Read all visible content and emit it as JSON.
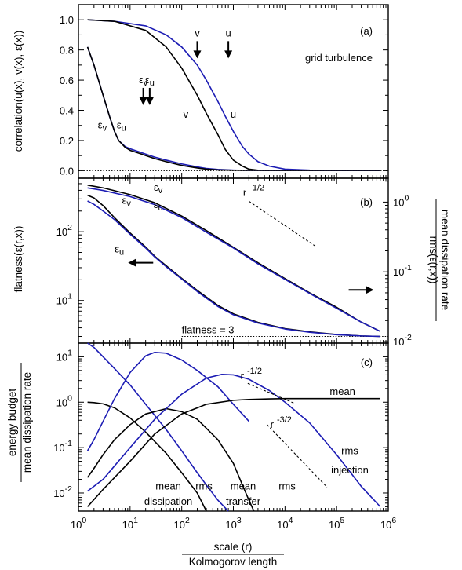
{
  "chart_data": [
    {
      "panel": "a",
      "type": "line",
      "panel_label": "(a)",
      "title_note": "grid turbulence",
      "ylabel": "correlation(u(x), v(x), ε(x))",
      "xscale": "log",
      "xlim": [
        1,
        1000000
      ],
      "ylim": [
        -0.05,
        1.1
      ],
      "yticks": [
        "0.0",
        "0.2",
        "0.4",
        "0.6",
        "0.8",
        "1.0"
      ],
      "reference_line": {
        "y": 0,
        "style": "dotted"
      },
      "series": [
        {
          "name": "u",
          "color": "#1c1cb4",
          "x": [
            1.5,
            5,
            20,
            50,
            100,
            200,
            300,
            500,
            700,
            1000,
            1500,
            2000,
            3000,
            5000,
            10000,
            30000,
            100000,
            700000
          ],
          "y": [
            1.0,
            0.99,
            0.96,
            0.9,
            0.82,
            0.7,
            0.6,
            0.46,
            0.36,
            0.26,
            0.16,
            0.11,
            0.06,
            0.03,
            0.01,
            0.004,
            0.002,
            0.002
          ]
        },
        {
          "name": "v",
          "color": "#000000",
          "x": [
            1.5,
            5,
            20,
            50,
            100,
            200,
            300,
            500,
            700,
            1000,
            1500,
            2000,
            3000,
            5000,
            10000,
            700000
          ],
          "y": [
            1.0,
            0.99,
            0.93,
            0.82,
            0.68,
            0.5,
            0.38,
            0.24,
            0.14,
            0.07,
            0.03,
            0.01,
            0.003,
            0.002,
            0.002,
            0.002
          ]
        },
        {
          "name": "εu",
          "color": "#1c1cb4",
          "x": [
            1.5,
            2,
            3,
            4,
            5,
            6,
            8,
            10,
            15,
            20,
            30,
            50,
            100,
            200,
            300,
            500,
            1000,
            2000,
            700000
          ],
          "y": [
            0.82,
            0.7,
            0.5,
            0.36,
            0.26,
            0.2,
            0.16,
            0.145,
            0.125,
            0.11,
            0.09,
            0.07,
            0.045,
            0.025,
            0.015,
            0.008,
            0.004,
            0.002,
            0.002
          ]
        },
        {
          "name": "εv",
          "color": "#000000",
          "x": [
            1.5,
            2,
            3,
            4,
            5,
            6,
            8,
            10,
            15,
            20,
            30,
            50,
            100,
            200,
            300,
            500,
            1000,
            2000,
            700000
          ],
          "y": [
            0.82,
            0.7,
            0.5,
            0.36,
            0.26,
            0.2,
            0.155,
            0.135,
            0.115,
            0.1,
            0.08,
            0.06,
            0.035,
            0.018,
            0.01,
            0.005,
            0.003,
            0.002,
            0.002
          ]
        }
      ],
      "annotations": [
        {
          "text": "v",
          "x": 200,
          "y": 0.89,
          "arrow": "down"
        },
        {
          "text": "u",
          "x": 800,
          "y": 0.89,
          "arrow": "down"
        },
        {
          "text": "εv",
          "x": 18,
          "y": 0.58,
          "arrow": "down"
        },
        {
          "text": "εu",
          "x": 24,
          "y": 0.58,
          "arrow": "down"
        },
        {
          "text": "εv",
          "x": 2.9,
          "y": 0.28
        },
        {
          "text": "εu",
          "x": 6.8,
          "y": 0.28
        },
        {
          "text": "v",
          "x": 120,
          "y": 0.35
        },
        {
          "text": "u",
          "x": 1000,
          "y": 0.35
        }
      ]
    },
    {
      "panel": "b",
      "type": "line",
      "panel_label": "(b)",
      "ylabel_left": "flatness(ε(r,x))",
      "ylabel_right_numerator": "rms(ε(r,x))",
      "ylabel_right_denominator": "mean dissipation rate",
      "xscale": "log",
      "yscale_left": "log",
      "yscale_right": "log",
      "xlim": [
        1,
        1000000
      ],
      "ylim_left": [
        2.4,
        600
      ],
      "ylim_right": [
        0.0095,
        2.2
      ],
      "yticks_left": [
        {
          "base": "10",
          "exp": "1"
        },
        {
          "base": "10",
          "exp": "2"
        }
      ],
      "yticks_right": [
        {
          "base": "10",
          "exp": "0"
        },
        {
          "base": "10",
          "exp": "-1"
        },
        {
          "base": "10",
          "exp": "-2"
        }
      ],
      "reference_line": {
        "label": "flatness = 3",
        "y": 3,
        "style": "dotted"
      },
      "series": [
        {
          "name": "flatness εv",
          "axis": "left",
          "color": "#000000",
          "x": [
            1.5,
            2,
            3,
            5,
            10,
            20,
            30,
            50,
            100,
            200,
            500,
            1000,
            3000,
            10000,
            30000,
            100000,
            300000,
            700000
          ],
          "y": [
            340,
            310,
            240,
            160,
            96,
            60,
            44,
            32,
            21,
            14,
            8.5,
            6.4,
            4.8,
            3.9,
            3.5,
            3.2,
            3.05,
            3.0
          ]
        },
        {
          "name": "flatness εu",
          "axis": "left",
          "color": "#1c1cb4",
          "x": [
            1.5,
            2,
            3,
            5,
            10,
            20,
            30,
            50,
            100,
            200,
            500,
            1000,
            3000,
            10000,
            30000,
            100000,
            300000,
            700000
          ],
          "y": [
            280,
            250,
            200,
            150,
            92,
            58,
            43,
            31,
            20.5,
            13.5,
            8.2,
            6.2,
            4.7,
            3.85,
            3.45,
            3.18,
            3.05,
            3.0
          ]
        },
        {
          "name": "rms εv",
          "axis": "right",
          "color": "#000000",
          "x": [
            1.5,
            3,
            10,
            30,
            100,
            300,
            1000,
            3000,
            10000,
            30000,
            100000,
            300000,
            700000
          ],
          "y": [
            1.75,
            1.6,
            1.28,
            0.98,
            0.63,
            0.39,
            0.225,
            0.135,
            0.08,
            0.05,
            0.031,
            0.019,
            0.014
          ]
        },
        {
          "name": "rms εu",
          "axis": "right",
          "color": "#1c1cb4",
          "x": [
            1.5,
            3,
            10,
            30,
            100,
            300,
            1000,
            3000,
            10000,
            30000,
            100000,
            300000,
            700000
          ],
          "y": [
            1.6,
            1.47,
            1.2,
            0.92,
            0.6,
            0.37,
            0.22,
            0.13,
            0.078,
            0.049,
            0.03,
            0.019,
            0.014
          ]
        }
      ],
      "fit_line": {
        "label_base": "r",
        "label_exp": "-1/2",
        "style": "dashed",
        "x": [
          2000,
          40000
        ],
        "y": [
          1.03,
          0.23
        ]
      },
      "annotations": [
        {
          "text": "εv",
          "x": 35,
          "y": 1.45,
          "axis": "right"
        },
        {
          "text": "εu",
          "x": 35,
          "y": 0.82,
          "axis": "right"
        },
        {
          "text": "εv",
          "x": 8.5,
          "y": 0.95,
          "axis": "right"
        },
        {
          "text": "εu",
          "x": 6.2,
          "y": 0.19,
          "axis": "right"
        },
        {
          "text": "←",
          "x": 16,
          "y": 0.135,
          "axis": "right"
        },
        {
          "text": "→",
          "x": 300000,
          "y": 0.055,
          "axis": "right"
        }
      ]
    },
    {
      "panel": "c",
      "type": "line",
      "panel_label": "(c)",
      "ylabel_numerator": "energy budget",
      "ylabel_denominator": "mean dissipation rate",
      "xlabel_numerator": "scale (r)",
      "xlabel_denominator": "Kolmogorov length",
      "xscale": "log",
      "yscale": "log",
      "xlim": [
        1,
        1000000
      ],
      "ylim": [
        0.004,
        20
      ],
      "xticks": [
        {
          "base": "10",
          "exp": "0"
        },
        {
          "base": "10",
          "exp": "1"
        },
        {
          "base": "10",
          "exp": "2"
        },
        {
          "base": "10",
          "exp": "3"
        },
        {
          "base": "10",
          "exp": "4"
        },
        {
          "base": "10",
          "exp": "5"
        },
        {
          "base": "10",
          "exp": "6"
        }
      ],
      "yticks": [
        {
          "base": "10",
          "exp": "-2"
        },
        {
          "base": "10",
          "exp": "-1"
        },
        {
          "base": "10",
          "exp": "0"
        },
        {
          "base": "10",
          "exp": "1"
        }
      ],
      "series": [
        {
          "name": "rms dissipation",
          "color": "#1c1cb4",
          "x": [
            1.5,
            2,
            3,
            5,
            10,
            20,
            50,
            100,
            200,
            300,
            500,
            800
          ],
          "y": [
            20,
            16,
            10,
            5.5,
            2.4,
            0.9,
            0.25,
            0.085,
            0.028,
            0.015,
            0.007,
            0.004
          ]
        },
        {
          "name": "mean dissipation",
          "color": "#000000",
          "x": [
            1.5,
            2,
            3,
            5,
            10,
            20,
            50,
            100,
            200,
            300
          ],
          "y": [
            1.0,
            0.98,
            0.92,
            0.75,
            0.45,
            0.22,
            0.075,
            0.028,
            0.01,
            0.004
          ]
        },
        {
          "name": "rms transfer",
          "color": "#1c1cb4",
          "x": [
            1.5,
            2,
            3,
            5,
            10,
            20,
            30,
            50,
            100,
            200,
            500,
            1000,
            2000
          ],
          "y": [
            0.085,
            0.15,
            0.38,
            1.2,
            4.5,
            10.5,
            12.5,
            12,
            8.5,
            5,
            2.2,
            0.9,
            0.38
          ]
        },
        {
          "name": "mean transfer",
          "color": "#000000",
          "x": [
            1.5,
            2,
            3,
            5,
            10,
            20,
            50,
            100,
            200,
            500,
            1000,
            1500,
            2000,
            2500
          ],
          "y": [
            0.022,
            0.035,
            0.07,
            0.15,
            0.32,
            0.55,
            0.72,
            0.62,
            0.42,
            0.15,
            0.045,
            0.015,
            0.007,
            0.004
          ]
        },
        {
          "name": "rms injection",
          "color": "#1c1cb4",
          "x": [
            1.5,
            3,
            10,
            30,
            100,
            300,
            600,
            1000,
            2000,
            5000,
            10000,
            30000,
            100000,
            300000,
            700000
          ],
          "y": [
            0.011,
            0.02,
            0.1,
            0.42,
            1.5,
            3.4,
            4.1,
            4.0,
            3.2,
            1.8,
            1.0,
            0.35,
            0.07,
            0.014,
            0.005
          ]
        },
        {
          "name": "mean injection",
          "color": "#000000",
          "x": [
            1.5,
            3,
            10,
            30,
            100,
            300,
            1000,
            2000,
            5000,
            10000,
            30000,
            100000,
            300000,
            700000
          ],
          "y": [
            0.005,
            0.012,
            0.05,
            0.2,
            0.55,
            0.9,
            1.1,
            1.15,
            1.18,
            1.2,
            1.2,
            1.2,
            1.2,
            1.2
          ]
        }
      ],
      "fit_lines": [
        {
          "label_base": "r",
          "label_exp": "-1/2",
          "style": "dashed",
          "x": [
            1900,
            15000
          ],
          "y": [
            2.6,
            0.95
          ]
        },
        {
          "label_base": "r",
          "label_exp": "-3/2",
          "style": "dashed",
          "x": [
            4500,
            65000
          ],
          "y": [
            0.32,
            0.0135
          ]
        }
      ],
      "annotations": [
        {
          "text": "mean",
          "x": 130000,
          "y": 1.45
        },
        {
          "text": "rms",
          "x": 180000,
          "y": 0.072
        },
        {
          "text": "injection",
          "x": 180000,
          "y": 0.027
        },
        {
          "text": "mean",
          "x": 55,
          "y": 0.012
        },
        {
          "text": "dissipation",
          "x": 55,
          "y": 0.0055
        },
        {
          "text": "rms",
          "x": 270,
          "y": 0.012
        },
        {
          "text": "mean",
          "x": 1550,
          "y": 0.012
        },
        {
          "text": "transfer",
          "x": 1550,
          "y": 0.0055
        },
        {
          "text": "rms",
          "x": 11000,
          "y": 0.012
        }
      ]
    }
  ]
}
